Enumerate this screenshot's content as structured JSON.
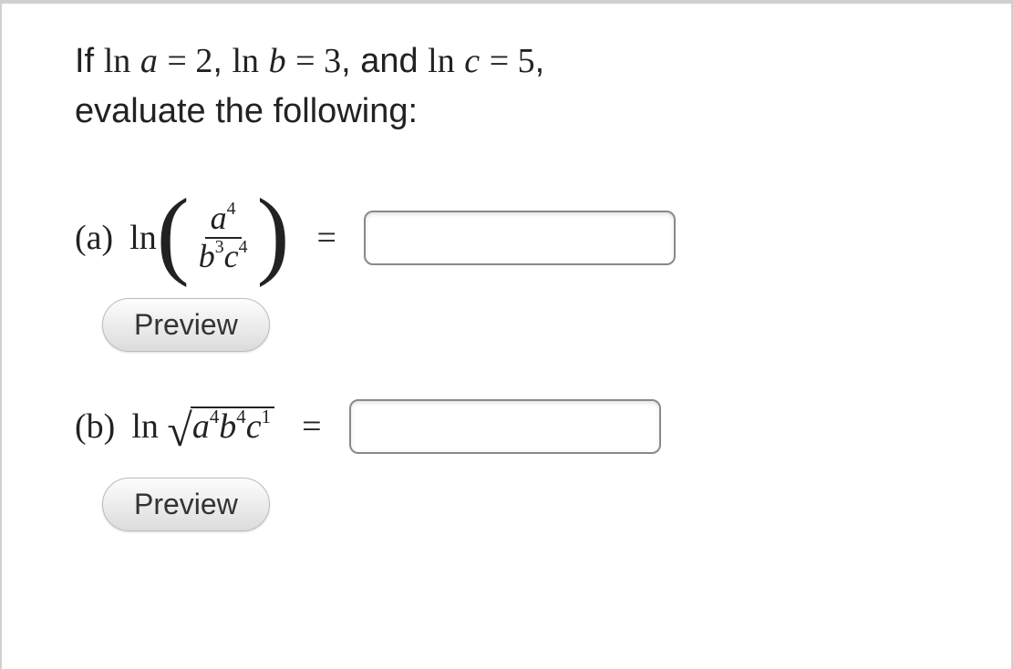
{
  "prompt": {
    "prefix": "If ",
    "ln": "ln",
    "a": "a",
    "b": "b",
    "c": "c",
    "eq": " = ",
    "val_a": "2",
    "val_b": "3",
    "val_c": "5",
    "sep": ", ",
    "and_word": "and ",
    "after_comma": ",",
    "line2": "evaluate the following:"
  },
  "parts": {
    "a": {
      "label": "(a) ",
      "ln": "ln",
      "num_base": "a",
      "num_exp": "4",
      "den_b_base": "b",
      "den_b_exp": "3",
      "den_c_base": "c",
      "den_c_exp": "4",
      "equals": "=",
      "preview": "Preview"
    },
    "b": {
      "label": "(b) ",
      "ln": "ln",
      "a_base": "a",
      "a_exp": "4",
      "b_base": "b",
      "b_exp": "4",
      "c_base": "c",
      "c_exp": "1",
      "equals": "=",
      "preview": "Preview"
    }
  },
  "styling": {
    "text_color": "#222222",
    "border_color": "#d0d0d0",
    "input_border": "#8a8a8a",
    "button_gradient_top": "#fdfdfd",
    "button_gradient_bottom": "#dcdcdc",
    "fontsize_body": 38,
    "fontsize_button": 32
  }
}
